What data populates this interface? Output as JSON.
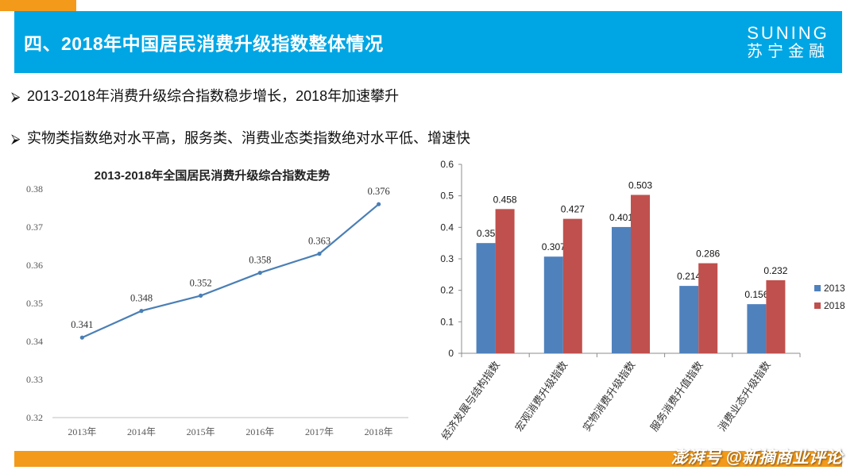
{
  "header": {
    "title": "四、2018年中国居民消费升级指数整体情况",
    "logo_en": "SUNING",
    "logo_zh": "苏宁金融"
  },
  "bullets": [
    "2013-2018年消费升级综合指数稳步增长，2018年加速攀升",
    "实物类指数绝对水平高，服务类、消费业态类指数绝对水平低、增速快"
  ],
  "watermark": "澎湃号 @新摘商业评论",
  "colors": {
    "header": "#00a6e4",
    "accent": "#f39a1a",
    "line": "#4a7fb5",
    "bar2013": "#4f81bd",
    "bar2018": "#c0504d"
  },
  "chart_data": [
    {
      "type": "line",
      "title": "2013-2018年全国居民消费升级综合指数走势",
      "x": [
        "2013年",
        "2014年",
        "2015年",
        "2016年",
        "2017年",
        "2018年"
      ],
      "series": [
        {
          "values": [
            0.341,
            0.348,
            0.352,
            0.358,
            0.363,
            0.376
          ]
        }
      ],
      "ylim": [
        0.32,
        0.38
      ],
      "yticks": [
        "0.32",
        "0.33",
        "0.34",
        "0.35",
        "0.36",
        "0.37",
        "0.38"
      ],
      "data_labels": [
        "0.341",
        "0.348",
        "0.352",
        "0.358",
        "0.363",
        "0.376"
      ],
      "grid": false
    },
    {
      "type": "bar",
      "categories": [
        "经济发展与结构指数",
        "宏观消费升级指数",
        "实物消费升级指数",
        "服务消费升值指数",
        "消费业态升级指数"
      ],
      "series": [
        {
          "name": "2013",
          "values": [
            0.35,
            0.307,
            0.401,
            0.214,
            0.156
          ],
          "labels": [
            "0.35",
            "0.307",
            "0.401",
            "0.214",
            "0.156"
          ]
        },
        {
          "name": "2018",
          "values": [
            0.458,
            0.427,
            0.503,
            0.286,
            0.232
          ],
          "labels": [
            "0.458",
            "0.427",
            "0.503",
            "0.286",
            "0.232"
          ]
        }
      ],
      "ylim": [
        0,
        0.6
      ],
      "yticks": [
        "0",
        "0.1",
        "0.2",
        "0.3",
        "0.4",
        "0.5",
        "0.6"
      ],
      "legend": "right",
      "grid": false
    }
  ]
}
